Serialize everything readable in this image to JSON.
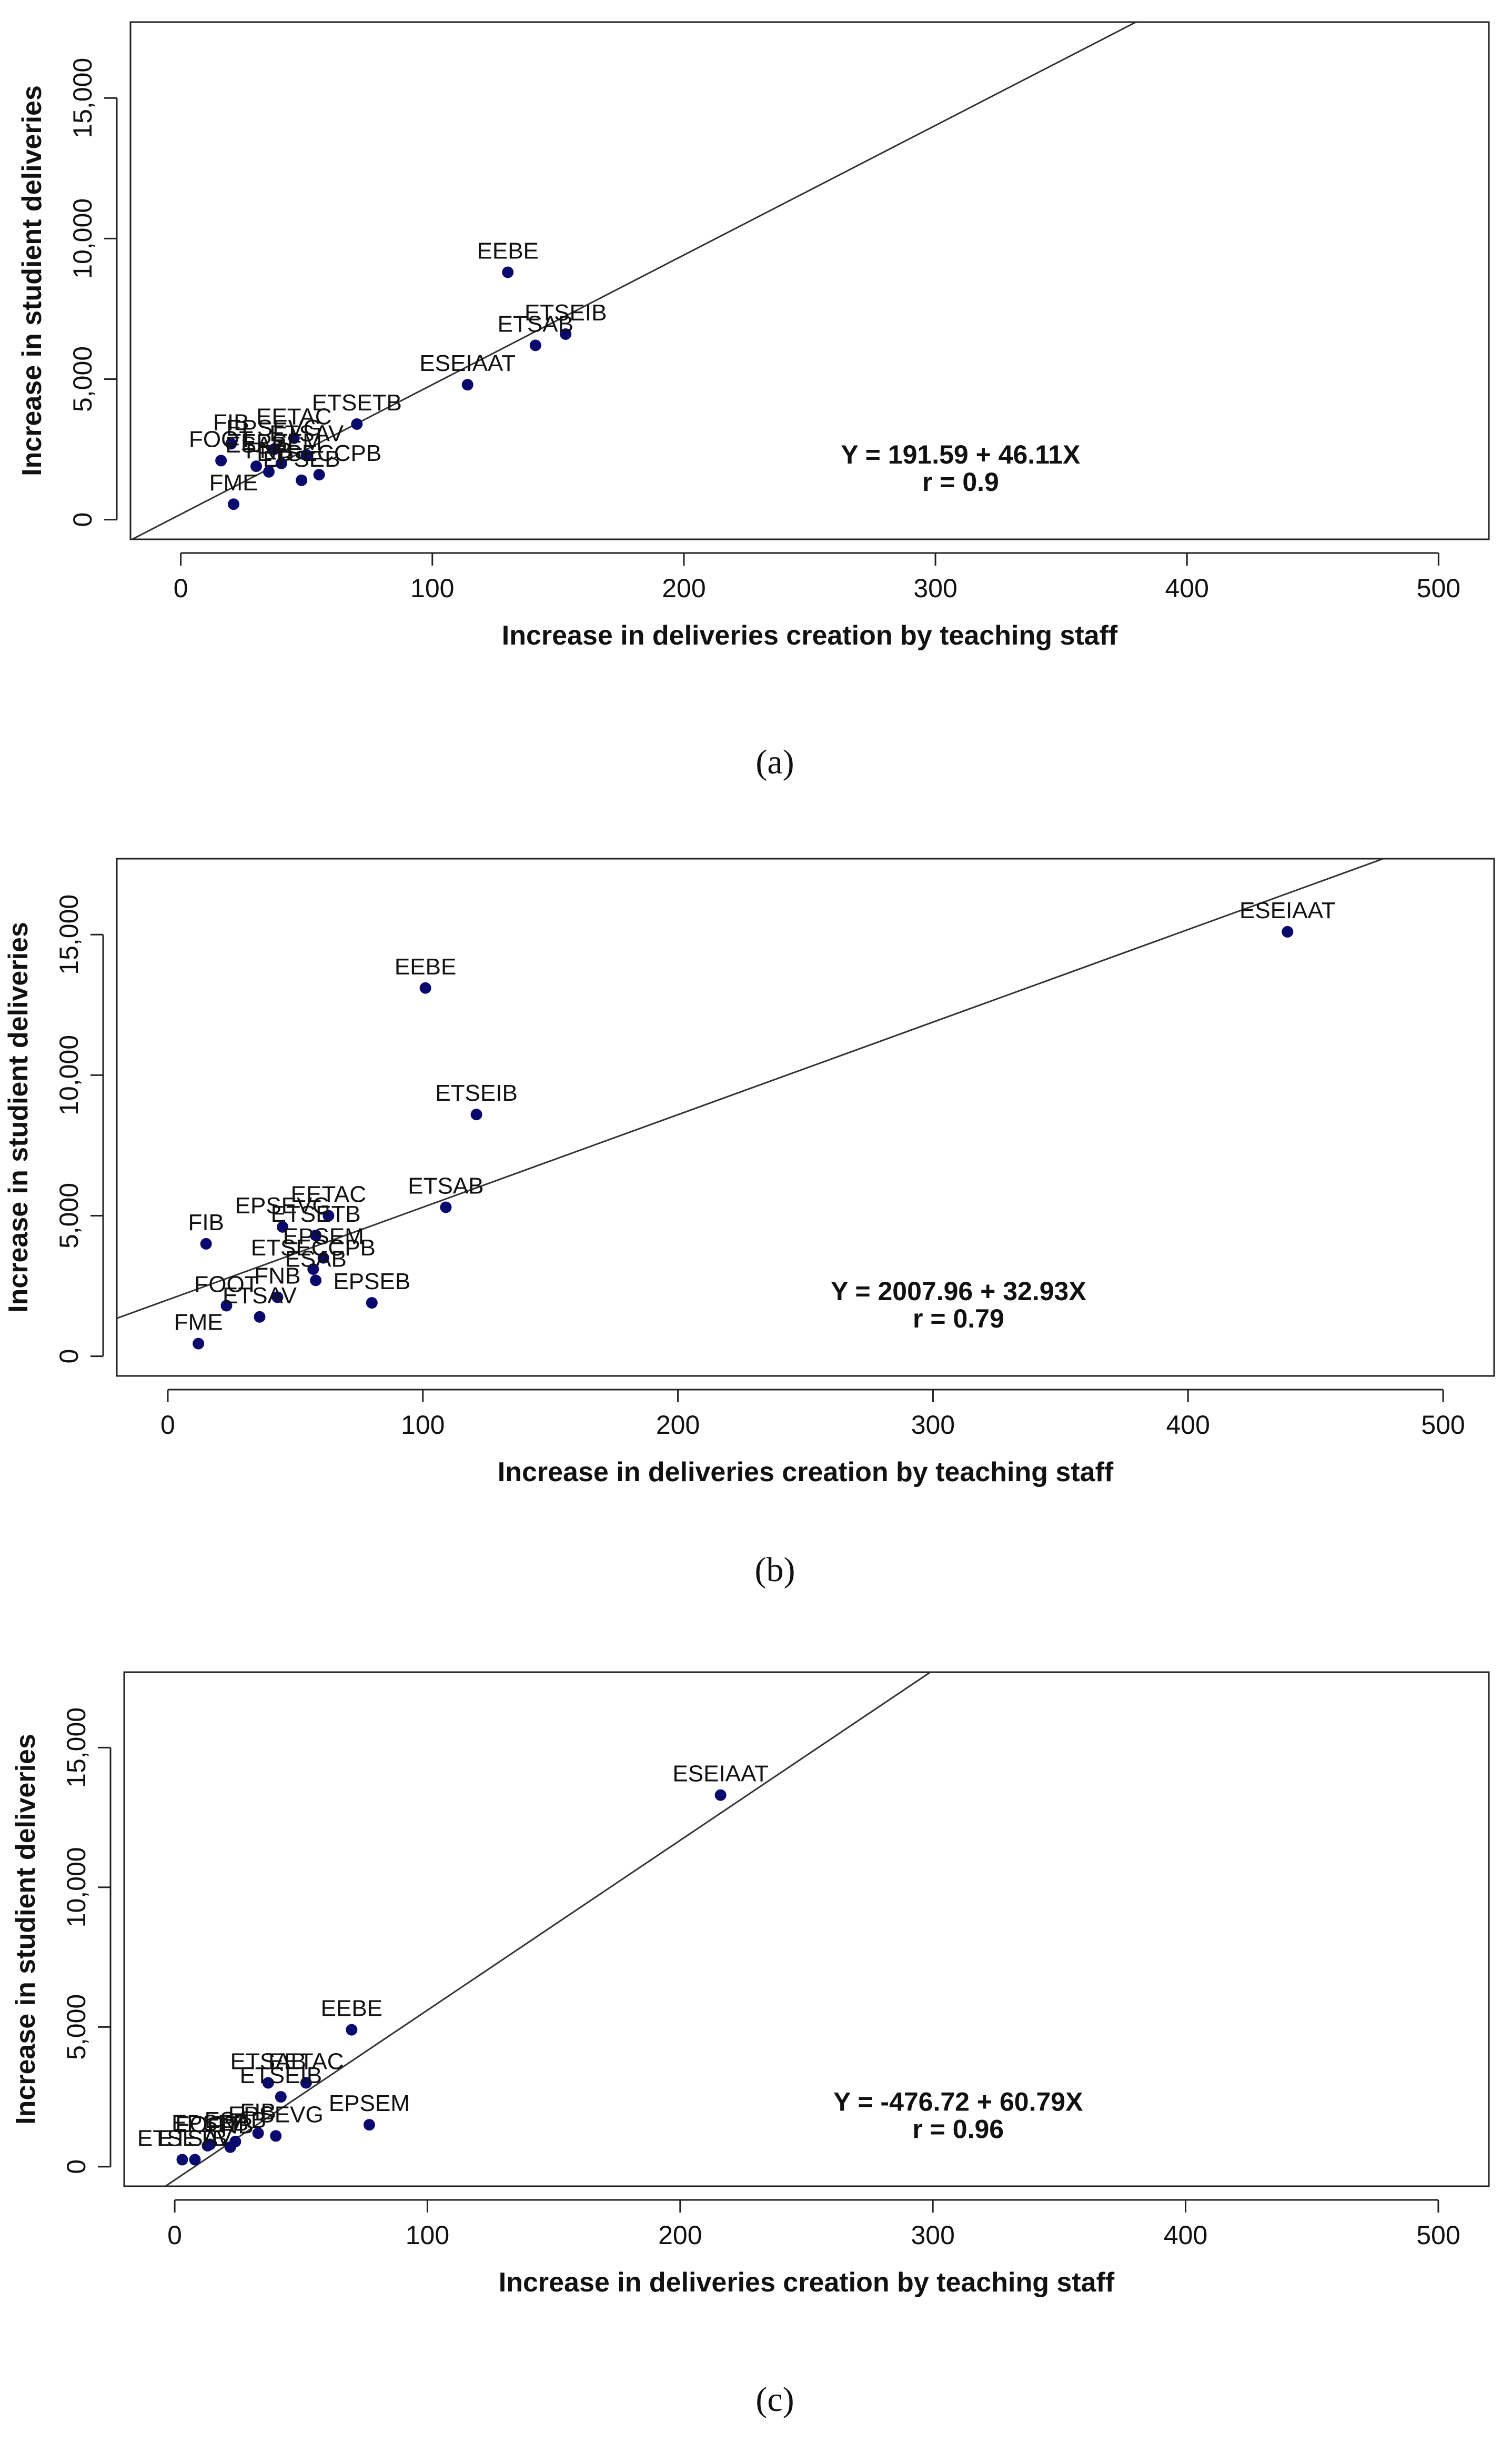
{
  "chart_data": [
    {
      "type": "scatter",
      "panel": "a",
      "caption": "(a)",
      "xlabel": "Increase in deliveries creation by teaching staff",
      "ylabel": "Increase in studient deliveries",
      "xlim": [
        -20,
        520
      ],
      "ylim": [
        -700,
        17700
      ],
      "x_ticks": [
        0,
        100,
        200,
        300,
        400,
        500
      ],
      "y_ticks": [
        0,
        5000,
        10000,
        15000
      ],
      "x_tick_labels": [
        "0",
        "100",
        "200",
        "300",
        "400",
        "500"
      ],
      "y_tick_labels": [
        "0",
        "5,000",
        "10,000",
        "15,000"
      ],
      "regression": {
        "intercept": 191.59,
        "slope": 46.11
      },
      "equation": "Y = 191.59 + 46.11X",
      "r_text": "r =  0.9",
      "points": [
        {
          "label": "EEBE",
          "x": 130,
          "y": 8800
        },
        {
          "label": "ETSEIB",
          "x": 153,
          "y": 6600
        },
        {
          "label": "ETSAB",
          "x": 141,
          "y": 6200
        },
        {
          "label": "ESEIAAT",
          "x": 114,
          "y": 4800
        },
        {
          "label": "ETSETB",
          "x": 70,
          "y": 3400
        },
        {
          "label": "EETAC",
          "x": 45,
          "y": 2900
        },
        {
          "label": "FIB",
          "x": 20,
          "y": 2700
        },
        {
          "label": "EPSEVG",
          "x": 37,
          "y": 2500
        },
        {
          "label": "ETSAV",
          "x": 50,
          "y": 2300
        },
        {
          "label": "FOOT",
          "x": 16,
          "y": 2100
        },
        {
          "label": "EPSEM",
          "x": 40,
          "y": 2000
        },
        {
          "label": "ESAB",
          "x": 30,
          "y": 1900
        },
        {
          "label": "ETSECCPB",
          "x": 55,
          "y": 1600
        },
        {
          "label": "EPSEB",
          "x": 48,
          "y": 1400
        },
        {
          "label": "FNB",
          "x": 35,
          "y": 1700
        },
        {
          "label": "FME",
          "x": 21,
          "y": 550
        }
      ],
      "point_color": "#0a0a6e"
    },
    {
      "type": "scatter",
      "panel": "b",
      "caption": "(b)",
      "xlabel": "Increase in deliveries creation by teaching staff",
      "ylabel": "Increase in studient deliveries",
      "xlim": [
        -20,
        520
      ],
      "ylim": [
        -700,
        17700
      ],
      "x_ticks": [
        0,
        100,
        200,
        300,
        400,
        500
      ],
      "y_ticks": [
        0,
        5000,
        10000,
        15000
      ],
      "x_tick_labels": [
        "0",
        "100",
        "200",
        "300",
        "400",
        "500"
      ],
      "y_tick_labels": [
        "0",
        "5,000",
        "10,000",
        "15,000"
      ],
      "regression": {
        "intercept": 2007.96,
        "slope": 32.93
      },
      "equation": "Y = 2007.96 + 32.93X",
      "r_text": "r =  0.79",
      "points": [
        {
          "label": "ESEIAAT",
          "x": 439,
          "y": 15100
        },
        {
          "label": "EEBE",
          "x": 101,
          "y": 13100
        },
        {
          "label": "ETSEIB",
          "x": 121,
          "y": 8600
        },
        {
          "label": "ETSAB",
          "x": 109,
          "y": 5300
        },
        {
          "label": "EETAC",
          "x": 63,
          "y": 5000
        },
        {
          "label": "EPSEVG",
          "x": 45,
          "y": 4600
        },
        {
          "label": "ETSETB",
          "x": 58,
          "y": 4300
        },
        {
          "label": "FIB",
          "x": 15,
          "y": 4000
        },
        {
          "label": "EPSEM",
          "x": 61,
          "y": 3500
        },
        {
          "label": "ETSECCPB",
          "x": 57,
          "y": 3100
        },
        {
          "label": "ESAB",
          "x": 58,
          "y": 2700
        },
        {
          "label": "EPSEB",
          "x": 80,
          "y": 1900
        },
        {
          "label": "FNB",
          "x": 43,
          "y": 2100
        },
        {
          "label": "FOOT",
          "x": 23,
          "y": 1800
        },
        {
          "label": "ETSAV",
          "x": 36,
          "y": 1400
        },
        {
          "label": "FME",
          "x": 12,
          "y": 450
        }
      ],
      "point_color": "#0a0a6e"
    },
    {
      "type": "scatter",
      "panel": "c",
      "caption": "(c)",
      "xlabel": "Increase in deliveries creation by teaching staff",
      "ylabel": "Increase in studient deliveries",
      "xlim": [
        -20,
        520
      ],
      "ylim": [
        -700,
        17700
      ],
      "x_ticks": [
        0,
        100,
        200,
        300,
        400,
        500
      ],
      "y_ticks": [
        0,
        5000,
        10000,
        15000
      ],
      "x_tick_labels": [
        "0",
        "100",
        "200",
        "300",
        "400",
        "500"
      ],
      "y_tick_labels": [
        "0",
        "5,000",
        "10,000",
        "15,000"
      ],
      "regression": {
        "intercept": -476.72,
        "slope": 60.79
      },
      "equation": "Y = -476.72 + 60.79X",
      "r_text": "r =  0.96",
      "points": [
        {
          "label": "ESEIAAT",
          "x": 216,
          "y": 13300
        },
        {
          "label": "EEBE",
          "x": 70,
          "y": 4900
        },
        {
          "label": "ETSAB",
          "x": 37,
          "y": 3000
        },
        {
          "label": "EETAC",
          "x": 52,
          "y": 3000
        },
        {
          "label": "ETSEIB",
          "x": 42,
          "y": 2500
        },
        {
          "label": "EPSEM",
          "x": 77,
          "y": 1500
        },
        {
          "label": "EPSEVG",
          "x": 40,
          "y": 1100
        },
        {
          "label": "FIB",
          "x": 33,
          "y": 1200
        },
        {
          "label": "ESAB",
          "x": 24,
          "y": 900
        },
        {
          "label": "EPSEB",
          "x": 14,
          "y": 800
        },
        {
          "label": "FNB",
          "x": 22,
          "y": 700
        },
        {
          "label": "FOOT",
          "x": 13,
          "y": 750
        },
        {
          "label": "ETSETB",
          "x": 3,
          "y": 250
        },
        {
          "label": "ETSAV",
          "x": 8,
          "y": 250
        }
      ],
      "point_color": "#0a0a6e"
    }
  ]
}
